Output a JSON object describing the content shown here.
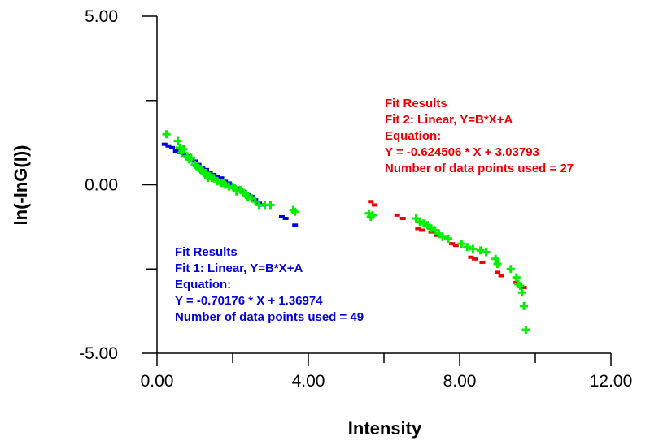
{
  "chart_data": {
    "type": "scatter",
    "title": "",
    "xlabel": "Intensity",
    "ylabel": "ln(-lnG(I))",
    "xlim": [
      0,
      12
    ],
    "ylim": [
      -5,
      5
    ],
    "x_ticks": [
      0,
      4,
      8,
      12
    ],
    "x_tick_labels": [
      "0.00",
      "4.00",
      "8.00",
      "12.00"
    ],
    "y_ticks": [
      -5,
      0,
      5
    ],
    "y_tick_labels": [
      "-5.00",
      "0.00",
      "5.00"
    ],
    "grid": false,
    "colors": {
      "measured": "#00ee00",
      "fit1": "#0000dd",
      "fit2": "#ee0000",
      "axis": "#000000"
    },
    "series": [
      {
        "marker": "plus",
        "color": "#00ee00",
        "x": [
          0.25,
          0.55,
          0.6,
          0.65,
          0.7,
          0.8,
          0.85,
          0.9,
          1.0,
          1.05,
          1.1,
          1.15,
          1.2,
          1.25,
          1.3,
          1.35,
          1.4,
          1.45,
          1.5,
          1.6,
          1.7,
          1.75,
          1.8,
          1.9,
          2.0,
          2.05,
          2.1,
          2.2,
          2.3,
          2.35,
          2.4,
          2.5,
          2.6,
          2.7,
          2.85,
          3.0,
          3.6,
          3.65,
          5.6,
          5.65,
          5.7,
          6.85,
          6.95,
          7.05,
          7.15,
          7.25,
          7.35,
          7.45,
          7.55,
          7.7,
          8.05,
          8.2,
          8.35,
          8.55,
          8.7,
          8.95,
          9.0,
          9.35,
          9.5,
          9.55,
          9.6,
          9.65,
          9.7,
          9.75
        ],
        "y": [
          1.5,
          1.3,
          1.1,
          0.95,
          1.05,
          0.85,
          0.75,
          0.8,
          0.6,
          0.55,
          0.5,
          0.45,
          0.4,
          0.35,
          0.35,
          0.2,
          0.25,
          0.2,
          0.2,
          0.1,
          0.05,
          0.05,
          0.0,
          -0.05,
          -0.05,
          -0.1,
          -0.2,
          -0.15,
          -0.25,
          -0.3,
          -0.35,
          -0.4,
          -0.5,
          -0.6,
          -0.6,
          -0.6,
          -0.75,
          -0.8,
          -0.85,
          -0.95,
          -0.9,
          -1.0,
          -1.1,
          -1.15,
          -1.2,
          -1.3,
          -1.35,
          -1.45,
          -1.55,
          -1.6,
          -1.75,
          -1.85,
          -1.9,
          -1.95,
          -2.0,
          -2.2,
          -2.35,
          -2.5,
          -2.75,
          -2.95,
          -3.0,
          -3.2,
          -3.6,
          -4.3
        ]
      },
      {
        "name": "Fit 1",
        "marker": "dot",
        "color": "#0000dd",
        "x": [
          0.2,
          0.3,
          0.4,
          0.5,
          0.6,
          0.7,
          0.8,
          0.9,
          1.0,
          1.1,
          1.2,
          1.3,
          1.4,
          1.5,
          1.6,
          1.7,
          1.8,
          1.9,
          2.0,
          2.1,
          2.2,
          2.3,
          2.4,
          2.5,
          2.6,
          2.7,
          2.8,
          3.3,
          3.4,
          3.65
        ],
        "y": [
          1.2,
          1.15,
          1.1,
          1.0,
          0.95,
          0.9,
          0.85,
          0.75,
          0.7,
          0.6,
          0.5,
          0.45,
          0.35,
          0.3,
          0.25,
          0.2,
          0.1,
          0.05,
          -0.05,
          -0.1,
          -0.15,
          -0.2,
          -0.3,
          -0.35,
          -0.45,
          -0.55,
          -0.6,
          -0.95,
          -1.0,
          -1.2
        ]
      },
      {
        "name": "Fit 2",
        "marker": "dot",
        "color": "#ee0000",
        "x": [
          5.65,
          5.75,
          6.35,
          6.5,
          6.9,
          7.0,
          7.25,
          7.4,
          7.8,
          7.9,
          8.3,
          8.4,
          8.6,
          9.0,
          9.1,
          9.5,
          9.7
        ],
        "y": [
          -0.5,
          -0.6,
          -0.9,
          -1.0,
          -1.3,
          -1.35,
          -1.4,
          -1.5,
          -1.75,
          -1.8,
          -2.15,
          -2.2,
          -2.3,
          -2.6,
          -2.7,
          -2.9,
          -3.05
        ]
      }
    ],
    "annotations": [
      {
        "color": "#ee0000",
        "lines": [
          "Fit Results",
          "Fit 2:  Linear, Y=B*X+A",
          "Equation:",
          "Y = -0.624506 * X + 3.03793",
          "Number of data points used = 27"
        ]
      },
      {
        "color": "#0000dd",
        "lines": [
          "Fit Results",
          "Fit 1:  Linear, Y=B*X+A",
          "Equation:",
          "Y = -0.70176 * X + 1.36974",
          "Number of data points used = 49"
        ]
      }
    ]
  }
}
